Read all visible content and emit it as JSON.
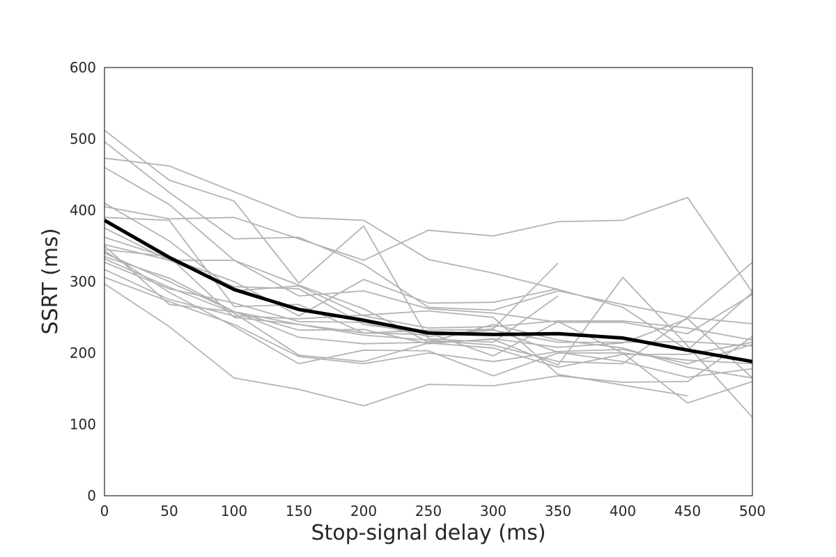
{
  "chart_data": {
    "type": "line",
    "title": "",
    "xlabel": "Stop-signal delay (ms)",
    "ylabel": "SSRT (ms)",
    "xlim": [
      0,
      500
    ],
    "ylim": [
      0,
      600
    ],
    "x_ticks": [
      0,
      50,
      100,
      150,
      200,
      250,
      300,
      350,
      400,
      450,
      500
    ],
    "y_ticks": [
      0,
      100,
      200,
      300,
      400,
      500,
      600
    ],
    "grid": false,
    "x": [
      0,
      50,
      100,
      150,
      200,
      250,
      300,
      350,
      400,
      450,
      500
    ],
    "subject_color": "#b3b3b3",
    "mean_color": "#000000",
    "series": [
      {
        "values": [
          512,
          442,
          413,
          298,
          378,
          220,
          215,
          280,
          null,
          null,
          null
        ]
      },
      {
        "values": [
          496,
          425,
          360,
          362,
          324,
          264,
          260,
          287,
          268,
          250,
          241
        ]
      },
      {
        "values": [
          473,
          462,
          426,
          390,
          386,
          331,
          312,
          289,
          264,
          204,
          285
        ]
      },
      {
        "values": [
          460,
          408,
          330,
          280,
          287,
          262,
          256,
          243,
          243,
          227,
          282
        ]
      },
      {
        "values": [
          410,
          357,
          287,
          294,
          252,
          235,
          237,
          245,
          245,
          235,
          218
        ]
      },
      {
        "values": [
          405,
          388,
          390,
          360,
          330,
          372,
          364,
          384,
          386,
          418,
          285
        ]
      },
      {
        "values": [
          390,
          386,
          265,
          268,
          228,
          226,
          232,
          215,
          215,
          216,
          210
        ]
      },
      {
        "values": [
          375,
          330,
          330,
          295,
          262,
          215,
          240,
          218,
          207,
          180,
          165
        ]
      },
      {
        "values": [
          362,
          333,
          300,
          252,
          303,
          270,
          271,
          290,
          null,
          null,
          null
        ]
      },
      {
        "values": [
          352,
          330,
          293,
          290,
          240,
          228,
          196,
          244,
          200,
          190,
          185
        ]
      },
      {
        "values": [
          345,
          335,
          250,
          240,
          225,
          218,
          211,
          188,
          185,
          250,
          327
        ]
      },
      {
        "values": [
          340,
          300,
          258,
          232,
          233,
          213,
          220,
          208,
          214,
          248,
          165
        ]
      },
      {
        "values": [
          335,
          305,
          258,
          222,
          213,
          215,
          219,
          183,
          306,
          210,
          110
        ]
      },
      {
        "values": [
          332,
          292,
          256,
          197,
          188,
          214,
          207,
          180,
          198,
          198,
          215
        ]
      },
      {
        "values": [
          327,
          290,
          270,
          244,
          243,
          223,
          234,
          326,
          null,
          null,
          null
        ]
      },
      {
        "values": [
          317,
          275,
          252,
          248,
          253,
          259,
          250,
          170,
          155,
          140,
          null
        ]
      },
      {
        "values": [
          306,
          272,
          240,
          195,
          185,
          200,
          188,
          202,
          205,
          185,
          212
        ]
      },
      {
        "values": [
          297,
          237,
          165,
          149,
          126,
          156,
          154,
          168,
          159,
          160,
          223
        ]
      },
      {
        "values": [
          350,
          268,
          258,
          240,
          228,
          232,
          233,
          201,
          188,
          166,
          178
        ]
      },
      {
        "values": [
          343,
          285,
          237,
          185,
          204,
          203,
          168,
          200,
          200,
          130,
          160
        ]
      }
    ],
    "mean_series": {
      "values": [
        386,
        334,
        289,
        261,
        246,
        228,
        226,
        227,
        221,
        204,
        188
      ]
    }
  }
}
